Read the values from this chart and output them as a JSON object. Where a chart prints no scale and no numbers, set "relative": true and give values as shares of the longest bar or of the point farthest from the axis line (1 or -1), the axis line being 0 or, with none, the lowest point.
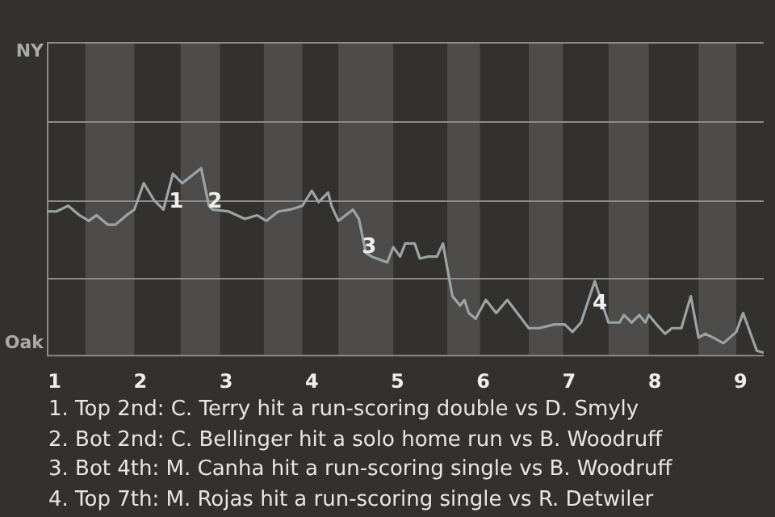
{
  "chart_data": {
    "type": "line",
    "relative": true,
    "x": [
      0.91,
      1.02,
      1.16,
      1.29,
      1.4,
      1.49,
      1.62,
      1.71,
      1.84,
      1.93,
      2.04,
      2.16,
      2.27,
      2.38,
      2.49,
      2.71,
      2.8,
      2.84,
      3.03,
      3.22,
      3.36,
      3.47,
      3.61,
      3.75,
      3.89,
      4,
      4.08,
      4.19,
      4.23,
      4.31,
      4.48,
      4.55,
      4.63,
      4.7,
      4.88,
      4.95,
      5.03,
      5.09,
      5.2,
      5.26,
      5.35,
      5.46,
      5.53,
      5.58,
      5.64,
      5.73,
      5.78,
      5.83,
      5.91,
      6.03,
      6.15,
      6.28,
      6.53,
      6.65,
      6.83,
      6.95,
      7.04,
      7.14,
      7.3,
      7.46,
      7.59,
      7.64,
      7.73,
      7.82,
      7.89,
      7.93,
      8.02,
      8.12,
      8.2,
      8.31,
      8.42,
      8.51,
      8.59,
      8.68,
      8.8,
      8.95,
      9.03,
      9.19,
      9.27
    ],
    "series": [
      {
        "color": "#9aa3a6",
        "values": [
          0.77,
          0.77,
          0.8,
          0.75,
          0.72,
          0.75,
          0.7,
          0.7,
          0.75,
          0.78,
          0.92,
          0.83,
          0.78,
          0.97,
          0.92,
          1,
          0.8,
          0.78,
          0.77,
          0.73,
          0.75,
          0.72,
          0.77,
          0.78,
          0.8,
          0.88,
          0.82,
          0.87,
          0.8,
          0.72,
          0.78,
          0.73,
          0.55,
          0.53,
          0.5,
          0.58,
          0.53,
          0.6,
          0.6,
          0.52,
          0.53,
          0.53,
          0.6,
          0.47,
          0.32,
          0.27,
          0.3,
          0.23,
          0.2,
          0.3,
          0.23,
          0.3,
          0.15,
          0.15,
          0.17,
          0.17,
          0.13,
          0.18,
          0.4,
          0.18,
          0.18,
          0.22,
          0.18,
          0.22,
          0.18,
          0.22,
          0.17,
          0.12,
          0.15,
          0.15,
          0.32,
          0.1,
          0.12,
          0.1,
          0.07,
          0.13,
          0.23,
          0.03,
          0.02
        ]
      }
    ],
    "xlim": [
      0.91,
      9.27
    ],
    "xticks": [
      1,
      2,
      3,
      4,
      5,
      6,
      7,
      8,
      9
    ],
    "legend": false,
    "marker": "none",
    "line_style": "solid",
    "ref_lines": [
      {
        "axis": "y",
        "value": 0.42,
        "color": "#8c8b89"
      },
      {
        "axis": "y",
        "value": 0.83,
        "color": "#8c8b89"
      },
      {
        "axis": "y",
        "value": 1.25,
        "color": "#8c8b89"
      },
      {
        "axis": "y",
        "value": 1.67,
        "color": "#8c8b89"
      }
    ],
    "bands": [
      {
        "axis": "x",
        "from": 1.36,
        "to": 1.93,
        "color": "#4d4c4a"
      },
      {
        "axis": "x",
        "from": 2.47,
        "to": 2.93,
        "color": "#4d4c4a"
      },
      {
        "axis": "x",
        "from": 3.44,
        "to": 3.89,
        "color": "#4d4c4a"
      },
      {
        "axis": "x",
        "from": 4.31,
        "to": 4.95,
        "color": "#4d4c4a"
      },
      {
        "axis": "x",
        "from": 5.58,
        "to": 5.96,
        "color": "#4d4c4a"
      },
      {
        "axis": "x",
        "from": 6.53,
        "to": 6.93,
        "color": "#4d4c4a"
      },
      {
        "axis": "x",
        "from": 7.46,
        "to": 7.93,
        "color": "#4d4c4a"
      },
      {
        "axis": "x",
        "from": 8.51,
        "to": 8.95,
        "color": "#4d4c4a"
      }
    ],
    "annotations": [
      "NY",
      "Oak",
      {
        "text": "1",
        "x": 2.42,
        "y": 0.82
      },
      {
        "text": "2",
        "x": 2.87,
        "y": 0.82
      },
      {
        "text": "3",
        "x": 4.67,
        "y": 0.58
      },
      {
        "text": "4",
        "x": 7.36,
        "y": 0.28
      },
      "1. Top 2nd: C. Terry hit a run-scoring double vs D. Smyly",
      "2. Bot 2nd: C. Bellinger hit a solo home run vs B. Woodruff",
      "3. Bot 4th: M. Canha hit a run-scoring single vs B. Woodruff",
      "4. Top 7th: M. Rojas hit a run-scoring single vs R. Detwiler"
    ]
  }
}
